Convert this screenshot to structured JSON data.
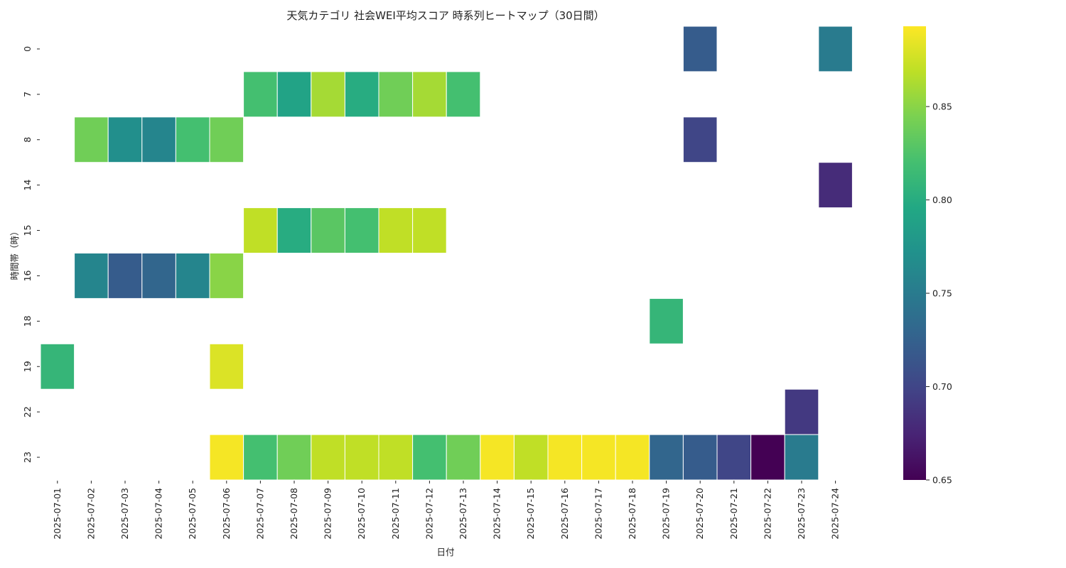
{
  "chart_data": {
    "type": "heatmap",
    "title": "天気カテゴリ 社会WEI平均スコア 時系列ヒートマップ（30日間）",
    "xlabel": "日付",
    "ylabel": "時間帯（時）",
    "x": [
      "2025-07-01",
      "2025-07-02",
      "2025-07-03",
      "2025-07-04",
      "2025-07-05",
      "2025-07-06",
      "2025-07-07",
      "2025-07-08",
      "2025-07-09",
      "2025-07-10",
      "2025-07-11",
      "2025-07-12",
      "2025-07-13",
      "2025-07-14",
      "2025-07-15",
      "2025-07-16",
      "2025-07-17",
      "2025-07-18",
      "2025-07-19",
      "2025-07-20",
      "2025-07-21",
      "2025-07-22",
      "2025-07-23",
      "2025-07-24"
    ],
    "y": [
      "0",
      "7",
      "8",
      "14",
      "15",
      "16",
      "18",
      "19",
      "22",
      "23"
    ],
    "values": [
      [
        null,
        null,
        null,
        null,
        null,
        null,
        null,
        null,
        null,
        null,
        null,
        null,
        null,
        null,
        null,
        null,
        null,
        null,
        null,
        0.72,
        null,
        null,
        null,
        0.75
      ],
      [
        null,
        null,
        null,
        null,
        null,
        null,
        0.82,
        0.79,
        0.86,
        0.8,
        0.84,
        0.86,
        0.82,
        null,
        null,
        null,
        null,
        null,
        null,
        null,
        null,
        null,
        null,
        null
      ],
      [
        null,
        0.84,
        0.77,
        0.76,
        0.82,
        0.84,
        null,
        null,
        null,
        null,
        null,
        null,
        null,
        null,
        null,
        null,
        null,
        null,
        null,
        0.7,
        null,
        null,
        null,
        null
      ],
      [
        null,
        null,
        null,
        null,
        null,
        null,
        null,
        null,
        null,
        null,
        null,
        null,
        null,
        null,
        null,
        null,
        null,
        null,
        null,
        null,
        null,
        null,
        null,
        0.68
      ],
      [
        null,
        null,
        null,
        null,
        null,
        null,
        0.87,
        0.8,
        0.83,
        0.82,
        0.87,
        0.87,
        null,
        null,
        null,
        null,
        null,
        null,
        null,
        null,
        null,
        null,
        null,
        null
      ],
      [
        null,
        0.76,
        0.72,
        0.73,
        0.76,
        0.85,
        null,
        null,
        null,
        null,
        null,
        null,
        null,
        null,
        null,
        null,
        null,
        null,
        null,
        null,
        null,
        null,
        null,
        null
      ],
      [
        null,
        null,
        null,
        null,
        null,
        null,
        null,
        null,
        null,
        null,
        null,
        null,
        null,
        null,
        null,
        null,
        null,
        null,
        0.81,
        null,
        null,
        null,
        null,
        null
      ],
      [
        0.81,
        null,
        null,
        null,
        null,
        0.88,
        null,
        null,
        null,
        null,
        null,
        null,
        null,
        null,
        null,
        null,
        null,
        null,
        null,
        null,
        null,
        null,
        null,
        null
      ],
      [
        null,
        null,
        null,
        null,
        null,
        null,
        null,
        null,
        null,
        null,
        null,
        null,
        null,
        null,
        null,
        null,
        null,
        null,
        null,
        null,
        null,
        null,
        0.69,
        null
      ],
      [
        null,
        null,
        null,
        null,
        null,
        0.89,
        0.82,
        0.84,
        0.87,
        0.87,
        0.87,
        0.82,
        0.84,
        0.89,
        0.87,
        0.89,
        0.89,
        0.89,
        0.73,
        0.72,
        0.7,
        0.65,
        0.75,
        null
      ]
    ],
    "colorscale": "viridis",
    "vmin": 0.65,
    "vmax": 0.893,
    "colorbar_ticks": [
      "0.65",
      "0.70",
      "0.75",
      "0.80",
      "0.85"
    ],
    "grid": false,
    "legend": "colorbar-right"
  }
}
